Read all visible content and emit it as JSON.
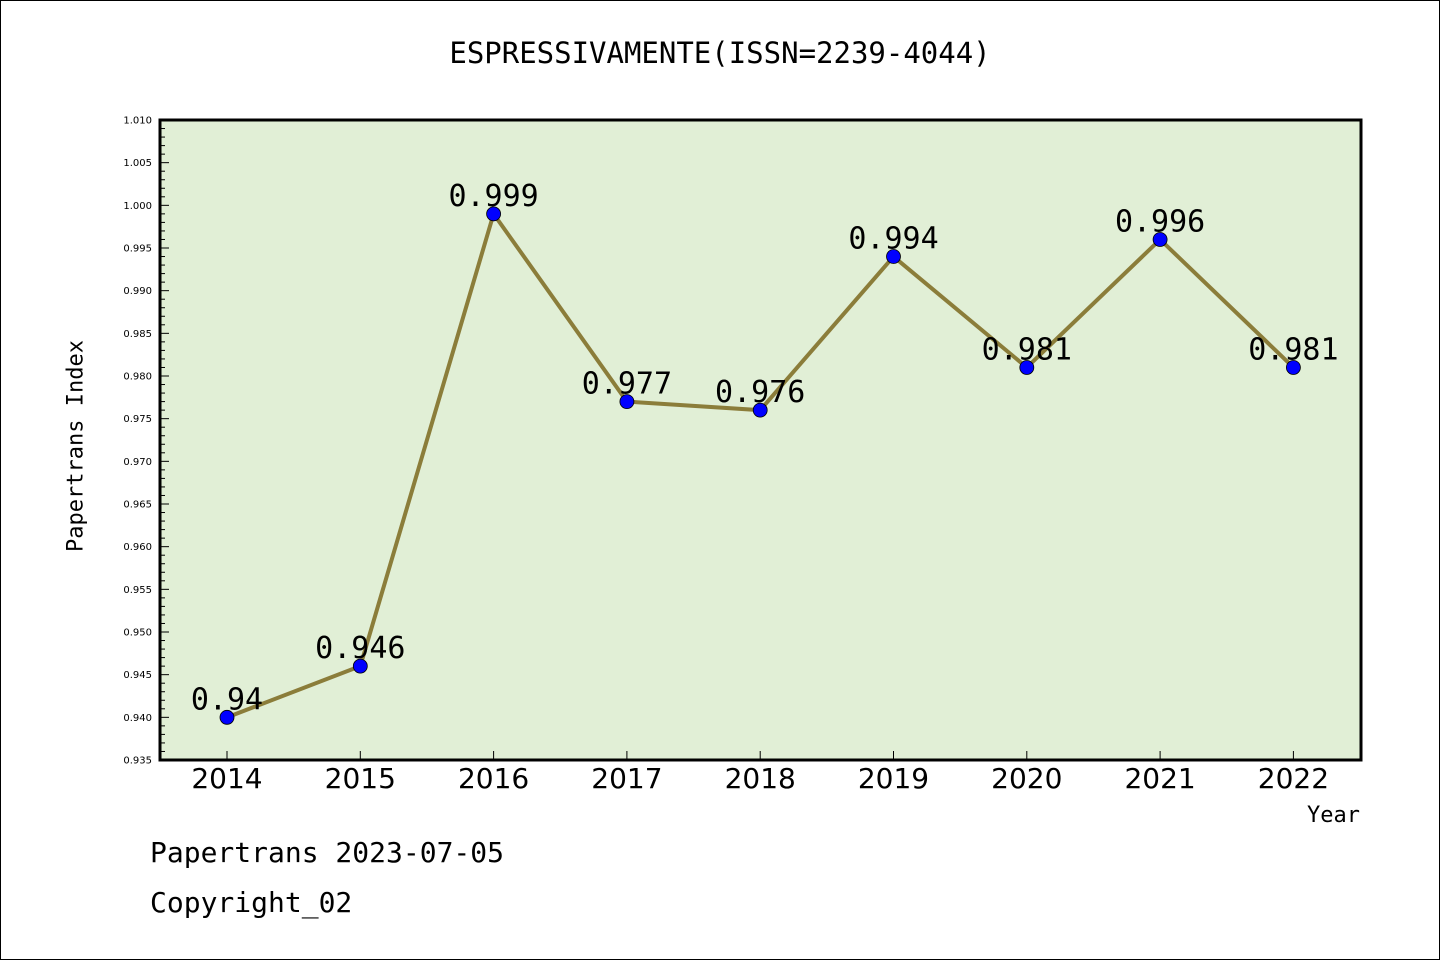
{
  "title": "ESPRESSIVAMENTE(ISSN=2239-4044)",
  "footer": {
    "line1": "Papertrans 2023-07-05",
    "line2": "Copyright_02"
  },
  "colors": {
    "plot_background": "#e1efd6",
    "line": "#8b7d3a",
    "marker": "#0000ff"
  },
  "chart_data": {
    "type": "line",
    "title": "ESPRESSIVAMENTE(ISSN=2239-4044)",
    "xlabel": "Year",
    "ylabel": "Papertrans Index",
    "categories": [
      "2014",
      "2015",
      "2016",
      "2017",
      "2018",
      "2019",
      "2020",
      "2021",
      "2022"
    ],
    "series": [
      {
        "values": [
          0.94,
          0.946,
          0.999,
          0.977,
          0.976,
          0.994,
          0.981,
          0.996,
          0.981
        ],
        "labels": [
          "0.94",
          "0.946",
          "0.999",
          "0.977",
          "0.976",
          "0.994",
          "0.981",
          "0.996",
          "0.981"
        ]
      }
    ],
    "ylim": [
      0.935,
      1.01
    ],
    "yticks": [
      "0.935",
      "0.940",
      "0.945",
      "0.950",
      "0.955",
      "0.960",
      "0.965",
      "0.970",
      "0.975",
      "0.980",
      "0.985",
      "0.990",
      "0.995",
      "1.000",
      "1.005",
      "1.010"
    ],
    "grid": false,
    "legend": "none"
  }
}
